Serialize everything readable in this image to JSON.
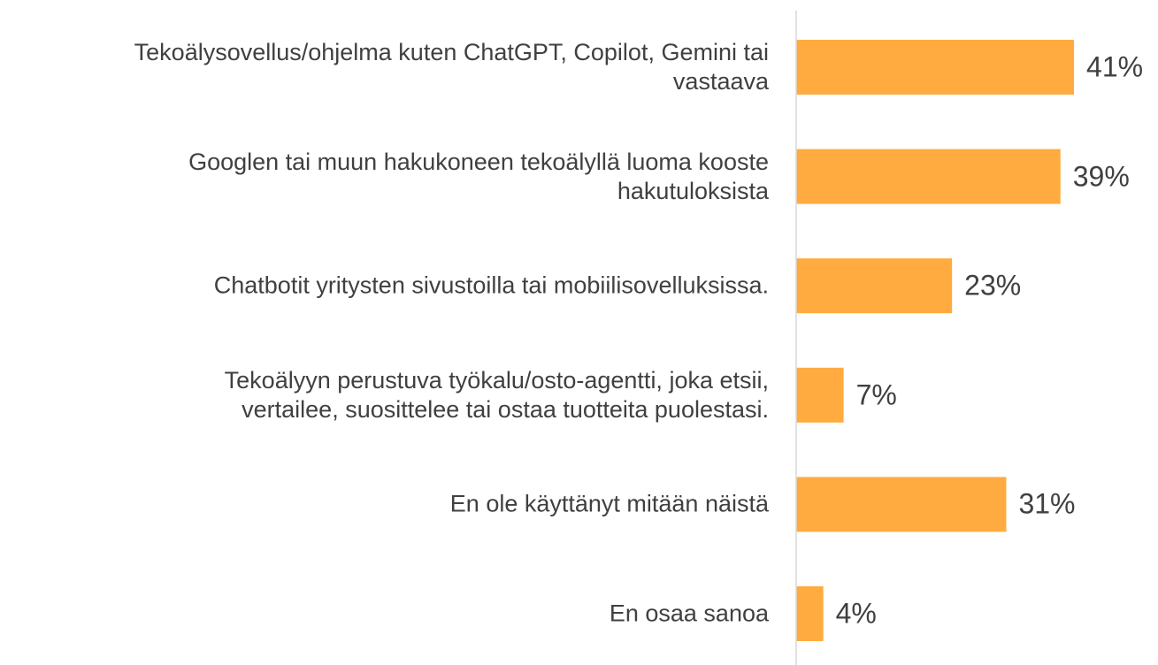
{
  "chart_data": {
    "type": "bar",
    "orientation": "horizontal",
    "categories": [
      "Tekoälysovellus/ohjelma kuten ChatGPT, Copilot, Gemini tai\nvastaava",
      "Googlen tai muun hakukoneen tekoälyllä luoma kooste\nhakutuloksista",
      "Chatbotit yritysten sivustoilla tai mobiilisovelluksissa.",
      "Tekoälyyn perustuva työkalu/osto-agentti, joka etsii,\nvertailee, suosittelee tai ostaa tuotteita puolestasi.",
      "En ole käyttänyt mitään näistä",
      "En osaa sanoa"
    ],
    "values": [
      41,
      39,
      23,
      7,
      31,
      4
    ],
    "value_labels": [
      "41%",
      "39%",
      "23%",
      "7%",
      "31%",
      "4%"
    ],
    "color": "#ffab40",
    "xlim": [
      0,
      50
    ]
  }
}
